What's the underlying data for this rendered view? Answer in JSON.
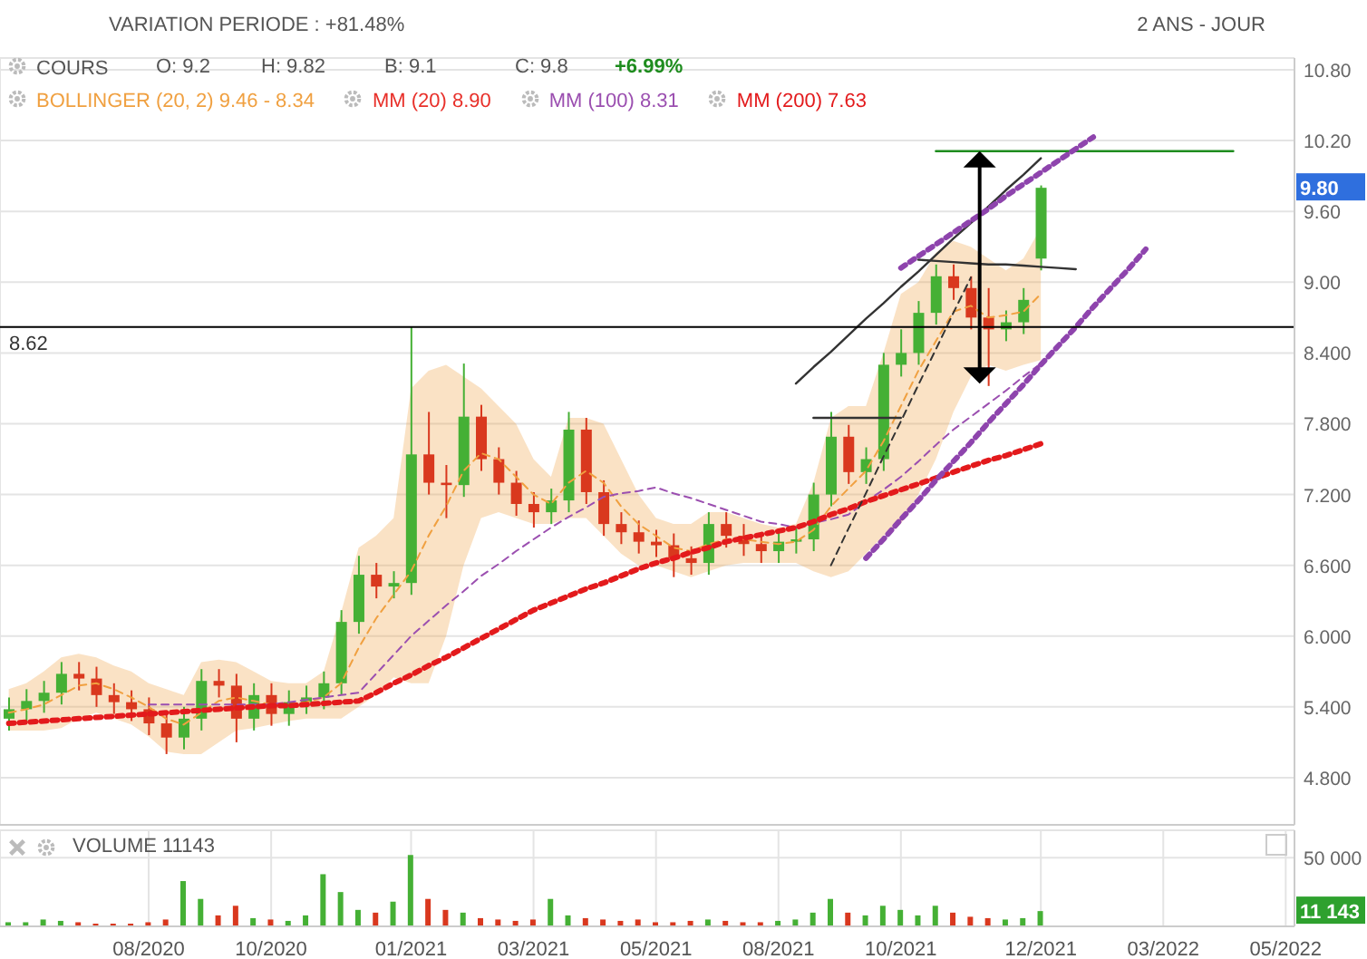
{
  "chart_data": [
    {
      "type": "candlestick",
      "title": "VARIATION PERIODE : +81.48%",
      "subtitle": "2 ANS - JOUR",
      "categories": [
        null,
        null,
        null,
        null,
        null,
        null,
        null,
        null,
        null,
        null,
        null,
        null,
        null,
        null,
        null,
        null,
        null,
        null,
        null,
        null,
        null,
        null,
        null,
        null,
        null,
        null,
        null,
        null,
        null,
        null,
        null,
        null,
        null,
        null,
        null,
        null,
        null,
        null,
        null,
        null,
        null,
        null,
        null,
        null,
        null,
        null,
        null,
        null,
        null,
        null,
        null,
        null,
        null,
        null,
        null,
        null,
        null,
        null,
        null,
        null,
        null,
        null,
        null,
        null,
        null,
        null,
        null,
        null,
        null,
        null,
        null,
        null,
        null,
        null
      ],
      "ohlc": [
        [
          5.3,
          5.48,
          5.2,
          5.38
        ],
        [
          5.38,
          5.55,
          5.28,
          5.45
        ],
        [
          5.45,
          5.62,
          5.35,
          5.52
        ],
        [
          5.52,
          5.78,
          5.42,
          5.68
        ],
        [
          5.68,
          5.78,
          5.54,
          5.64
        ],
        [
          5.64,
          5.74,
          5.4,
          5.5
        ],
        [
          5.5,
          5.6,
          5.34,
          5.44
        ],
        [
          5.44,
          5.54,
          5.28,
          5.38
        ],
        [
          5.38,
          5.48,
          5.16,
          5.26
        ],
        [
          5.26,
          5.36,
          5.0,
          5.14
        ],
        [
          5.14,
          5.4,
          5.04,
          5.3
        ],
        [
          5.3,
          5.72,
          5.2,
          5.62
        ],
        [
          5.62,
          5.72,
          5.48,
          5.58
        ],
        [
          5.58,
          5.68,
          5.1,
          5.3
        ],
        [
          5.3,
          5.6,
          5.2,
          5.5
        ],
        [
          5.5,
          5.6,
          5.24,
          5.34
        ],
        [
          5.34,
          5.54,
          5.24,
          5.44
        ],
        [
          5.44,
          5.58,
          5.34,
          5.48
        ],
        [
          5.48,
          5.7,
          5.38,
          5.6
        ],
        [
          5.6,
          6.22,
          5.5,
          6.12
        ],
        [
          6.12,
          6.68,
          6.02,
          6.52
        ],
        [
          6.52,
          6.62,
          6.32,
          6.42
        ],
        [
          6.42,
          6.55,
          6.32,
          6.45
        ],
        [
          6.45,
          8.62,
          6.35,
          7.54
        ],
        [
          7.54,
          7.9,
          7.2,
          7.3
        ],
        [
          7.3,
          7.45,
          7.0,
          7.28
        ],
        [
          7.28,
          8.31,
          7.18,
          7.86
        ],
        [
          7.86,
          7.96,
          7.4,
          7.5
        ],
        [
          7.5,
          7.6,
          7.2,
          7.3
        ],
        [
          7.3,
          7.4,
          7.02,
          7.12
        ],
        [
          7.12,
          7.22,
          6.92,
          7.05
        ],
        [
          7.05,
          7.25,
          6.95,
          7.15
        ],
        [
          7.15,
          7.9,
          7.05,
          7.75
        ],
        [
          7.75,
          7.85,
          7.12,
          7.22
        ],
        [
          7.22,
          7.32,
          6.85,
          6.95
        ],
        [
          6.95,
          7.05,
          6.78,
          6.88
        ],
        [
          6.88,
          6.98,
          6.7,
          6.8
        ],
        [
          6.8,
          6.9,
          6.67,
          6.77
        ],
        [
          6.77,
          6.87,
          6.5,
          6.66
        ],
        [
          6.66,
          6.76,
          6.52,
          6.62
        ],
        [
          6.62,
          7.05,
          6.52,
          6.95
        ],
        [
          6.95,
          7.05,
          6.75,
          6.85
        ],
        [
          6.85,
          6.95,
          6.68,
          6.78
        ],
        [
          6.78,
          6.88,
          6.62,
          6.72
        ],
        [
          6.72,
          6.9,
          6.62,
          6.8
        ],
        [
          6.8,
          6.92,
          6.7,
          6.82
        ],
        [
          6.82,
          7.3,
          6.72,
          7.2
        ],
        [
          7.2,
          7.9,
          7.1,
          7.69
        ],
        [
          7.69,
          7.79,
          7.29,
          7.39
        ],
        [
          7.39,
          7.6,
          7.29,
          7.5
        ],
        [
          7.5,
          8.4,
          7.4,
          8.3
        ],
        [
          8.3,
          8.6,
          8.2,
          8.4
        ],
        [
          8.4,
          8.84,
          8.3,
          8.74
        ],
        [
          8.74,
          9.15,
          8.64,
          9.05
        ],
        [
          9.05,
          9.15,
          8.85,
          8.95
        ],
        [
          8.95,
          9.05,
          8.6,
          8.7
        ],
        [
          8.7,
          8.95,
          8.12,
          8.6
        ],
        [
          8.6,
          8.76,
          8.5,
          8.66
        ],
        [
          8.66,
          8.95,
          8.56,
          8.85
        ],
        [
          9.2,
          9.82,
          9.1,
          9.8
        ],
        null,
        null,
        null,
        null,
        null,
        null,
        null,
        null,
        null,
        null,
        null,
        null,
        null,
        null
      ],
      "colors": [
        "#45b035",
        "#45b035",
        "#45b035",
        "#45b035",
        "#d9381e",
        "#d9381e",
        "#d9381e",
        "#d9381e",
        "#d9381e",
        "#d9381e",
        "#45b035",
        "#45b035",
        "#d9381e",
        "#d9381e",
        "#45b035",
        "#d9381e",
        "#45b035",
        "#45b035",
        "#45b035",
        "#45b035",
        "#45b035",
        "#d9381e",
        "#45b035",
        "#45b035",
        "#d9381e",
        "#d9381e",
        "#45b035",
        "#d9381e",
        "#d9381e",
        "#d9381e",
        "#d9381e",
        "#45b035",
        "#45b035",
        "#d9381e",
        "#d9381e",
        "#d9381e",
        "#d9381e",
        "#d9381e",
        "#d9381e",
        "#d9381e",
        "#45b035",
        "#d9381e",
        "#d9381e",
        "#d9381e",
        "#45b035",
        "#45b035",
        "#45b035",
        "#45b035",
        "#d9381e",
        "#45b035",
        "#45b035",
        "#45b035",
        "#45b035",
        "#45b035",
        "#d9381e",
        "#d9381e",
        "#d9381e",
        "#45b035",
        "#45b035",
        "#45b035",
        null,
        null,
        null,
        null,
        null,
        null,
        null,
        null,
        null,
        null,
        null,
        null,
        null,
        null
      ],
      "series": [
        {
          "name": "BOLLINGER (20, 2) 9.46 - 8.34",
          "type": "line",
          "color": "#f0a040",
          "line_style": "dashed",
          "values": [
            5.35,
            5.38,
            5.42,
            5.5,
            5.58,
            5.6,
            5.55,
            5.48,
            5.4,
            5.3,
            5.25,
            5.35,
            5.45,
            5.48,
            5.45,
            5.42,
            5.42,
            5.44,
            5.48,
            5.6,
            5.9,
            6.15,
            6.35,
            6.55,
            6.85,
            7.1,
            7.4,
            7.55,
            7.5,
            7.35,
            7.2,
            7.12,
            7.3,
            7.4,
            7.3,
            7.1,
            6.95,
            6.85,
            6.75,
            6.72,
            6.78,
            6.82,
            6.82,
            6.8,
            6.78,
            6.8,
            6.9,
            7.1,
            7.25,
            7.4,
            7.65,
            7.95,
            8.25,
            8.5,
            8.75,
            8.8,
            8.7,
            8.72,
            8.75,
            8.9,
            null,
            null,
            null,
            null,
            null,
            null,
            null,
            null,
            null,
            null,
            null,
            null,
            null,
            null
          ],
          "upper": [
            5.55,
            5.6,
            5.7,
            5.82,
            5.85,
            5.82,
            5.75,
            5.7,
            5.6,
            5.55,
            5.5,
            5.78,
            5.8,
            5.78,
            5.7,
            5.62,
            5.6,
            5.6,
            5.7,
            6.2,
            6.75,
            6.85,
            7.0,
            8.1,
            8.25,
            8.3,
            8.2,
            8.1,
            7.95,
            7.8,
            7.5,
            7.35,
            7.85,
            7.85,
            7.8,
            7.5,
            7.2,
            7.0,
            6.95,
            6.95,
            7.05,
            7.05,
            7.0,
            6.95,
            6.92,
            6.95,
            7.3,
            7.85,
            7.95,
            7.95,
            8.4,
            8.9,
            9.0,
            9.25,
            9.35,
            9.3,
            9.2,
            9.1,
            9.2,
            9.46,
            null,
            null,
            null,
            null,
            null,
            null,
            null,
            null,
            null,
            null,
            null,
            null,
            null,
            null
          ],
          "lower": [
            5.2,
            5.2,
            5.2,
            5.22,
            5.3,
            5.35,
            5.3,
            5.25,
            5.15,
            5.02,
            5.0,
            5.0,
            5.1,
            5.2,
            5.22,
            5.25,
            5.28,
            5.3,
            5.3,
            5.3,
            5.4,
            5.5,
            5.65,
            5.6,
            5.6,
            6.0,
            6.6,
            7.0,
            7.05,
            7.0,
            6.95,
            6.95,
            7.0,
            7.0,
            6.85,
            6.7,
            6.6,
            6.6,
            6.55,
            6.5,
            6.55,
            6.6,
            6.62,
            6.62,
            6.62,
            6.62,
            6.55,
            6.5,
            6.55,
            6.7,
            6.85,
            6.95,
            7.2,
            7.5,
            7.9,
            8.2,
            8.3,
            8.25,
            8.3,
            8.34,
            null,
            null,
            null,
            null,
            null,
            null,
            null,
            null,
            null,
            null,
            null,
            null,
            null,
            null
          ]
        },
        {
          "name": "MM (100) 8.31",
          "type": "line",
          "color": "#9b4fb0",
          "line_style": "dashed",
          "values": [
            null,
            null,
            null,
            null,
            null,
            null,
            null,
            null,
            5.42,
            5.42,
            5.42,
            5.42,
            5.42,
            5.42,
            5.42,
            5.42,
            5.44,
            5.46,
            5.48,
            5.5,
            5.52,
            5.68,
            5.84,
            6.0,
            6.13,
            6.26,
            6.38,
            6.51,
            6.61,
            6.72,
            6.82,
            6.92,
            7.01,
            7.09,
            7.18,
            7.21,
            7.23,
            7.26,
            7.21,
            7.17,
            7.12,
            7.07,
            7.02,
            6.97,
            6.95,
            6.92,
            6.96,
            6.99,
            7.03,
            7.14,
            7.24,
            7.35,
            7.48,
            7.62,
            7.75,
            7.86,
            7.97,
            8.08,
            8.2,
            8.31,
            null,
            null,
            null,
            null,
            null,
            null,
            null,
            null,
            null,
            null,
            null,
            null,
            null,
            null
          ]
        },
        {
          "name": "MM (200) 7.63",
          "type": "line",
          "color": "#e31a1c",
          "line_style": "dotted",
          "values": [
            5.26,
            5.27,
            5.28,
            5.29,
            5.3,
            5.31,
            5.32,
            5.33,
            5.34,
            5.35,
            5.36,
            5.37,
            5.38,
            5.39,
            5.4,
            5.41,
            5.41,
            5.42,
            5.43,
            5.44,
            5.45,
            5.52,
            5.6,
            5.67,
            5.75,
            5.82,
            5.9,
            5.98,
            6.06,
            6.14,
            6.22,
            6.28,
            6.34,
            6.4,
            6.45,
            6.51,
            6.57,
            6.62,
            6.66,
            6.71,
            6.75,
            6.8,
            6.83,
            6.86,
            6.89,
            6.92,
            6.97,
            7.03,
            7.08,
            7.14,
            7.19,
            7.24,
            7.29,
            7.34,
            7.39,
            7.44,
            7.49,
            7.53,
            7.58,
            7.63,
            null,
            null,
            null,
            null,
            null,
            null,
            null,
            null,
            null,
            null,
            null,
            null,
            null,
            null
          ]
        },
        {
          "type": "line",
          "color": "#333333",
          "line_style": "solid",
          "values": [
            null,
            null,
            null,
            null,
            null,
            null,
            null,
            null,
            null,
            null,
            null,
            null,
            null,
            null,
            null,
            null,
            null,
            null,
            null,
            null,
            null,
            null,
            null,
            null,
            null,
            null,
            null,
            null,
            null,
            null,
            null,
            null,
            null,
            null,
            null,
            null,
            null,
            null,
            null,
            null,
            null,
            null,
            null,
            null,
            null,
            8.14,
            8.28,
            8.41,
            8.55,
            8.69,
            8.82,
            8.96,
            9.09,
            9.23,
            9.37,
            9.5,
            9.64,
            9.78,
            9.91,
            10.05,
            null,
            null,
            null,
            null,
            null,
            null,
            null,
            null,
            null,
            null,
            null,
            null,
            null,
            null
          ]
        },
        {
          "type": "line",
          "color": "#333333",
          "line_style": "dashed",
          "values": [
            null,
            null,
            null,
            null,
            null,
            null,
            null,
            null,
            null,
            null,
            null,
            null,
            null,
            null,
            null,
            null,
            null,
            null,
            null,
            null,
            null,
            null,
            null,
            null,
            null,
            null,
            null,
            null,
            null,
            null,
            null,
            null,
            null,
            null,
            null,
            null,
            null,
            null,
            null,
            null,
            null,
            null,
            null,
            null,
            null,
            null,
            null,
            6.6,
            6.91,
            7.21,
            7.52,
            7.82,
            8.13,
            8.43,
            8.74,
            9.04,
            null,
            null,
            null,
            null,
            null,
            null,
            null,
            null,
            null,
            null,
            null,
            null,
            null,
            null,
            null,
            null,
            null,
            null
          ]
        },
        {
          "type": "line",
          "color": "#333333",
          "line_style": "solid",
          "values": [
            null,
            null,
            null,
            null,
            null,
            null,
            null,
            null,
            null,
            null,
            null,
            null,
            null,
            null,
            null,
            null,
            null,
            null,
            null,
            null,
            null,
            null,
            null,
            null,
            null,
            null,
            null,
            null,
            null,
            null,
            null,
            null,
            null,
            null,
            null,
            null,
            null,
            null,
            null,
            null,
            null,
            null,
            null,
            null,
            null,
            null,
            7.85,
            7.85,
            7.85,
            7.85,
            7.85,
            7.85,
            null,
            null,
            null,
            null,
            null,
            null,
            null,
            null,
            null,
            null,
            null,
            null,
            null,
            null,
            null,
            null,
            null,
            null,
            null,
            null,
            null,
            null
          ]
        },
        {
          "type": "line",
          "color": "#333333",
          "line_style": "solid",
          "values": [
            null,
            null,
            null,
            null,
            null,
            null,
            null,
            null,
            null,
            null,
            null,
            null,
            null,
            null,
            null,
            null,
            null,
            null,
            null,
            null,
            null,
            null,
            null,
            null,
            null,
            null,
            null,
            null,
            null,
            null,
            null,
            null,
            null,
            null,
            null,
            null,
            null,
            null,
            null,
            null,
            null,
            null,
            null,
            null,
            null,
            null,
            null,
            null,
            null,
            null,
            null,
            null,
            9.19,
            9.18,
            9.17,
            9.16,
            9.15,
            9.15,
            9.14,
            9.13,
            9.12,
            9.11,
            null,
            null,
            null,
            null,
            null,
            null,
            null,
            null,
            null,
            null,
            null,
            null
          ]
        },
        {
          "type": "line",
          "color": "#1e8c1e",
          "line_style": "solid",
          "values": [
            null,
            null,
            null,
            null,
            null,
            null,
            null,
            null,
            null,
            null,
            null,
            null,
            null,
            null,
            null,
            null,
            null,
            null,
            null,
            null,
            null,
            null,
            null,
            null,
            null,
            null,
            null,
            null,
            null,
            null,
            null,
            null,
            null,
            null,
            null,
            null,
            null,
            null,
            null,
            null,
            null,
            null,
            null,
            null,
            null,
            null,
            null,
            null,
            null,
            null,
            null,
            null,
            null,
            10.11,
            10.11,
            10.11,
            10.11,
            10.11,
            10.11,
            10.11,
            10.11,
            10.11,
            10.11,
            10.11,
            10.11,
            10.11,
            10.11,
            10.11,
            10.11,
            10.11,
            10.11,
            null,
            null,
            null
          ]
        },
        {
          "type": "line",
          "color": "#8e44ad",
          "line_style": "dotted",
          "values": [
            null,
            null,
            null,
            null,
            null,
            null,
            null,
            null,
            null,
            null,
            null,
            null,
            null,
            null,
            null,
            null,
            null,
            null,
            null,
            null,
            null,
            null,
            null,
            null,
            null,
            null,
            null,
            null,
            null,
            null,
            null,
            null,
            null,
            null,
            null,
            null,
            null,
            null,
            null,
            null,
            null,
            null,
            null,
            null,
            null,
            null,
            null,
            null,
            null,
            null,
            null,
            9.12,
            9.22,
            9.32,
            9.42,
            9.52,
            9.62,
            9.73,
            9.83,
            9.93,
            10.03,
            10.13,
            10.23,
            null,
            null,
            null,
            null,
            null,
            null,
            null,
            null,
            null,
            null,
            null
          ]
        },
        {
          "type": "line",
          "color": "#8e44ad",
          "line_style": "dotted",
          "values": [
            null,
            null,
            null,
            null,
            null,
            null,
            null,
            null,
            null,
            null,
            null,
            null,
            null,
            null,
            null,
            null,
            null,
            null,
            null,
            null,
            null,
            null,
            null,
            null,
            null,
            null,
            null,
            null,
            null,
            null,
            null,
            null,
            null,
            null,
            null,
            null,
            null,
            null,
            null,
            null,
            null,
            null,
            null,
            null,
            null,
            null,
            null,
            null,
            null,
            6.66,
            6.82,
            6.99,
            7.15,
            7.32,
            7.48,
            7.64,
            7.81,
            7.97,
            8.13,
            8.3,
            8.46,
            8.62,
            8.79,
            8.95,
            9.11,
            9.28,
            null,
            null,
            null,
            null,
            null,
            null,
            null,
            null
          ]
        }
      ],
      "ylim": [
        4.4,
        10.9
      ],
      "yticks": [
        {
          "value": 4.8,
          "label": "4.800"
        },
        {
          "value": 5.4,
          "label": "5.400"
        },
        {
          "value": 6.0,
          "label": "6.000"
        },
        {
          "value": 6.6,
          "label": "6.600"
        },
        {
          "value": 7.2,
          "label": "7.200"
        },
        {
          "value": 7.8,
          "label": "7.800"
        },
        {
          "value": 8.4,
          "label": "8.400"
        },
        {
          "value": 9.0,
          "label": "9.00"
        },
        {
          "value": 9.6,
          "label": "9.60"
        },
        {
          "value": 10.2,
          "label": "10.20"
        },
        {
          "value": 10.8,
          "label": "10.80"
        }
      ],
      "grid": true,
      "legend": "top left",
      "tick_labels": "y",
      "ref_lines": [
        {
          "axis": "y",
          "value": 8.62,
          "label": "8.62",
          "color": "#000000"
        }
      ],
      "annotations": [
        "COURS",
        "O: 9.2",
        "H: 9.82",
        "B: 9.1",
        "C: 9.8",
        "+6.99%",
        "MM (20) 8.90",
        "9.80"
      ]
    },
    {
      "type": "bar",
      "title": "VOLUME 11143",
      "categories": [
        null,
        null,
        null,
        null,
        null,
        null,
        null,
        null,
        "08/2020",
        null,
        null,
        null,
        null,
        null,
        null,
        "10/2020",
        null,
        null,
        null,
        null,
        null,
        null,
        null,
        "01/2021",
        null,
        null,
        null,
        null,
        null,
        null,
        "03/2021",
        null,
        null,
        null,
        null,
        null,
        null,
        "05/2021",
        null,
        null,
        null,
        null,
        null,
        null,
        "08/2021",
        null,
        null,
        null,
        null,
        null,
        null,
        "10/2021",
        null,
        null,
        null,
        null,
        null,
        null,
        null,
        "12/2021",
        null,
        null,
        null,
        null,
        null,
        null,
        "03/2022",
        null,
        null,
        null,
        null,
        null,
        null,
        "05/2022"
      ],
      "values": [
        3000,
        3000,
        5000,
        4000,
        3000,
        2000,
        2000,
        2000,
        3000,
        5000,
        33000,
        20000,
        8000,
        15000,
        6000,
        5000,
        4000,
        8000,
        38000,
        25000,
        12000,
        10000,
        18000,
        52000,
        20000,
        12000,
        10000,
        6000,
        5000,
        4000,
        5000,
        20000,
        8000,
        6000,
        5000,
        4000,
        5000,
        3000,
        3000,
        4000,
        5000,
        4000,
        3000,
        3000,
        4000,
        5000,
        10000,
        20000,
        10000,
        8000,
        15000,
        12000,
        8000,
        15000,
        10000,
        7000,
        6000,
        5000,
        6000,
        11143,
        null,
        null,
        null,
        null,
        null,
        null,
        null,
        null,
        null,
        null,
        null,
        null,
        null,
        null
      ],
      "colors": [
        "#45b035",
        "#45b035",
        "#45b035",
        "#45b035",
        "#d9381e",
        "#d9381e",
        "#d9381e",
        "#d9381e",
        "#d9381e",
        "#d9381e",
        "#45b035",
        "#45b035",
        "#d9381e",
        "#d9381e",
        "#45b035",
        "#d9381e",
        "#45b035",
        "#45b035",
        "#45b035",
        "#45b035",
        "#45b035",
        "#d9381e",
        "#45b035",
        "#45b035",
        "#d9381e",
        "#d9381e",
        "#45b035",
        "#d9381e",
        "#d9381e",
        "#d9381e",
        "#d9381e",
        "#45b035",
        "#45b035",
        "#d9381e",
        "#d9381e",
        "#d9381e",
        "#d9381e",
        "#d9381e",
        "#d9381e",
        "#d9381e",
        "#45b035",
        "#d9381e",
        "#d9381e",
        "#d9381e",
        "#45b035",
        "#45b035",
        "#45b035",
        "#45b035",
        "#d9381e",
        "#45b035",
        "#45b035",
        "#45b035",
        "#45b035",
        "#45b035",
        "#d9381e",
        "#d9381e",
        "#d9381e",
        "#45b035",
        "#45b035",
        "#45b035",
        null,
        null,
        null,
        null,
        null,
        null,
        null,
        null,
        null,
        null,
        null,
        null,
        null,
        null
      ],
      "ylim": [
        0,
        70000
      ],
      "yticks": [
        {
          "value": 50000,
          "label": "50 000"
        }
      ],
      "grid": true,
      "annotations": [
        "11 143"
      ]
    }
  ]
}
